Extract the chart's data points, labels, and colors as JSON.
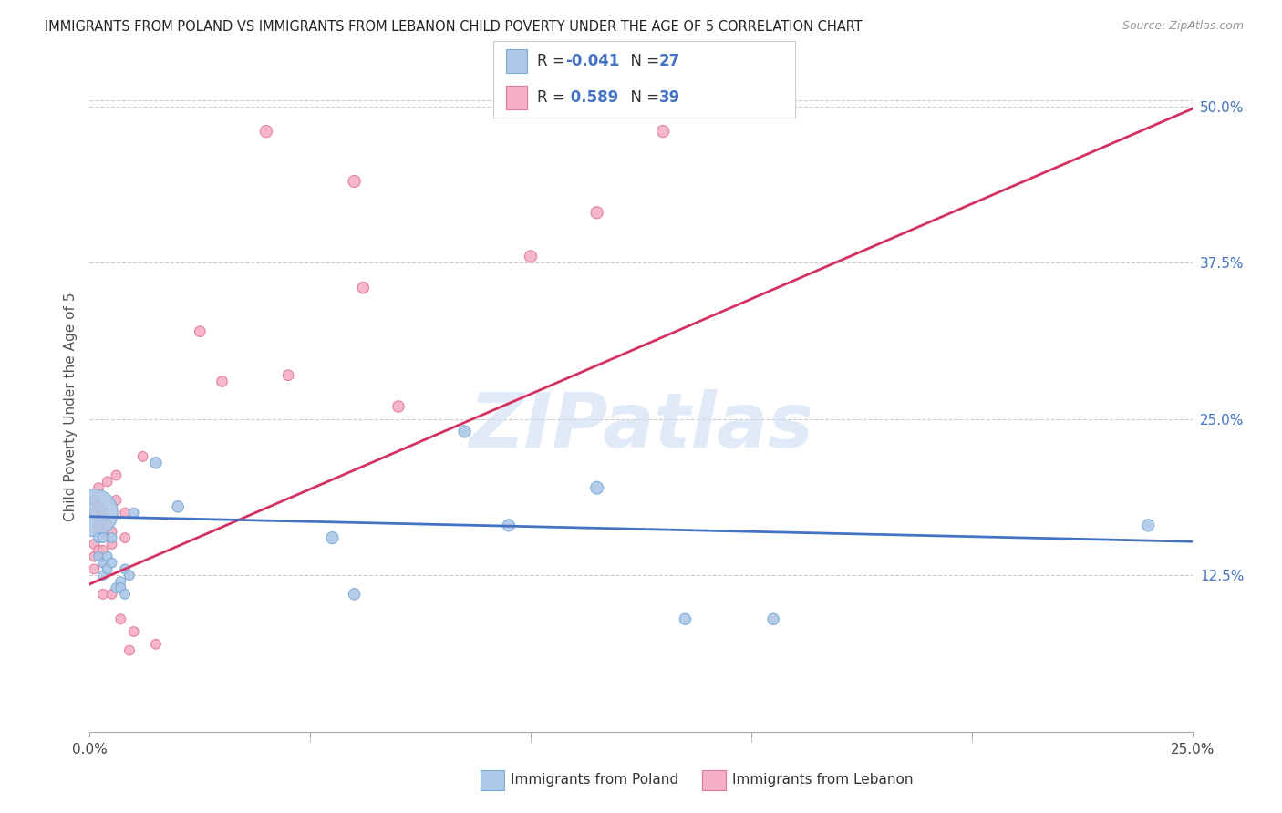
{
  "title": "IMMIGRANTS FROM POLAND VS IMMIGRANTS FROM LEBANON CHILD POVERTY UNDER THE AGE OF 5 CORRELATION CHART",
  "source": "Source: ZipAtlas.com",
  "ylabel": "Child Poverty Under the Age of 5",
  "xlim": [
    0,
    0.25
  ],
  "ylim": [
    0,
    0.52
  ],
  "yticks": [
    0.125,
    0.25,
    0.375,
    0.5
  ],
  "ytick_labels": [
    "12.5%",
    "25.0%",
    "37.5%",
    "50.0%"
  ],
  "xticks": [
    0.0,
    0.05,
    0.1,
    0.15,
    0.2,
    0.25
  ],
  "xtick_labels": [
    "0.0%",
    "",
    "",
    "",
    "",
    "25.0%"
  ],
  "watermark": "ZIPatlas",
  "poland_color": "#adc8e8",
  "lebanon_color": "#f5b0c5",
  "poland_edge": "#7aaad4",
  "lebanon_edge": "#e07898",
  "line_poland_color": "#4472c4",
  "line_lebanon_color": "#d43060",
  "R_poland": -0.041,
  "N_poland": 27,
  "R_lebanon": 0.589,
  "N_lebanon": 39,
  "poland_x": [
    0.001,
    0.002,
    0.002,
    0.003,
    0.003,
    0.003,
    0.004,
    0.004,
    0.005,
    0.005,
    0.006,
    0.007,
    0.007,
    0.008,
    0.008,
    0.009,
    0.01,
    0.015,
    0.02,
    0.055,
    0.06,
    0.085,
    0.095,
    0.115,
    0.135,
    0.155,
    0.24
  ],
  "poland_y": [
    0.175,
    0.155,
    0.14,
    0.155,
    0.135,
    0.125,
    0.14,
    0.13,
    0.155,
    0.135,
    0.115,
    0.12,
    0.115,
    0.11,
    0.13,
    0.125,
    0.175,
    0.215,
    0.18,
    0.155,
    0.11,
    0.24,
    0.165,
    0.195,
    0.09,
    0.09,
    0.165
  ],
  "poland_sizes": [
    1400,
    60,
    60,
    60,
    60,
    60,
    60,
    60,
    60,
    60,
    60,
    60,
    60,
    60,
    60,
    60,
    60,
    80,
    80,
    90,
    80,
    90,
    90,
    100,
    80,
    80,
    90
  ],
  "lebanon_x": [
    0.001,
    0.001,
    0.001,
    0.001,
    0.001,
    0.002,
    0.002,
    0.002,
    0.002,
    0.003,
    0.003,
    0.003,
    0.003,
    0.003,
    0.004,
    0.004,
    0.005,
    0.005,
    0.005,
    0.006,
    0.006,
    0.007,
    0.007,
    0.008,
    0.008,
    0.009,
    0.01,
    0.012,
    0.015,
    0.025,
    0.03,
    0.04,
    0.045,
    0.06,
    0.062,
    0.07,
    0.1,
    0.115,
    0.13
  ],
  "lebanon_y": [
    0.15,
    0.175,
    0.185,
    0.14,
    0.13,
    0.195,
    0.18,
    0.165,
    0.145,
    0.175,
    0.16,
    0.145,
    0.135,
    0.11,
    0.2,
    0.165,
    0.16,
    0.15,
    0.11,
    0.205,
    0.185,
    0.115,
    0.09,
    0.175,
    0.155,
    0.065,
    0.08,
    0.22,
    0.07,
    0.32,
    0.28,
    0.48,
    0.285,
    0.44,
    0.355,
    0.26,
    0.38,
    0.415,
    0.48
  ],
  "lebanon_sizes": [
    60,
    60,
    60,
    60,
    60,
    60,
    60,
    60,
    60,
    60,
    60,
    60,
    60,
    60,
    60,
    60,
    60,
    60,
    60,
    60,
    60,
    60,
    60,
    60,
    60,
    60,
    60,
    60,
    60,
    70,
    70,
    90,
    70,
    90,
    80,
    80,
    90,
    90,
    90
  ],
  "leb_line_x0": 0.0,
  "leb_line_y0": 0.118,
  "leb_line_x1": 0.25,
  "leb_line_y1": 0.498,
  "pol_line_x0": 0.0,
  "pol_line_y0": 0.172,
  "pol_line_x1": 0.25,
  "pol_line_y1": 0.152
}
